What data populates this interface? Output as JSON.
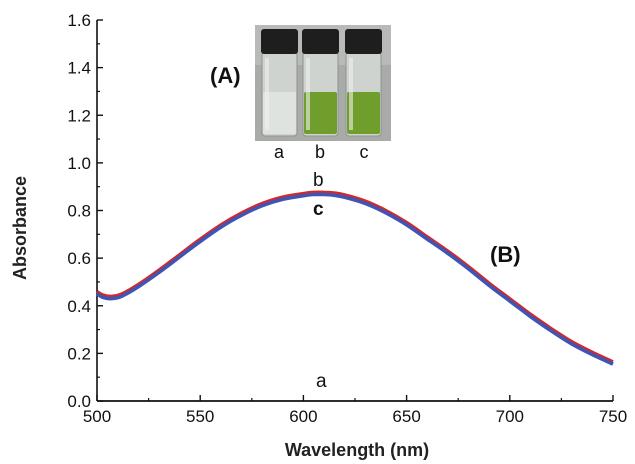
{
  "chart_data": {
    "type": "line",
    "xlabel": "Wavelength (nm)",
    "ylabel": "Absorbance",
    "xlim": [
      500,
      750
    ],
    "ylim": [
      0.0,
      1.6
    ],
    "xticks": [
      "500",
      "550",
      "600",
      "650",
      "700",
      "750"
    ],
    "yticks": [
      "0.0",
      "0.2",
      "0.4",
      "0.6",
      "0.8",
      "1.0",
      "1.2",
      "1.4",
      "1.6"
    ],
    "grid": false,
    "series": [
      {
        "name": "b",
        "color": "#d62728",
        "x": [
          500,
          503,
          507,
          512,
          520,
          530,
          540,
          550,
          560,
          570,
          580,
          590,
          600,
          605,
          610,
          615,
          620,
          630,
          640,
          650,
          660,
          670,
          680,
          690,
          700,
          710,
          720,
          730,
          740,
          750
        ],
        "y": [
          0.46,
          0.445,
          0.44,
          0.45,
          0.49,
          0.55,
          0.615,
          0.68,
          0.74,
          0.79,
          0.83,
          0.857,
          0.872,
          0.877,
          0.877,
          0.874,
          0.866,
          0.84,
          0.8,
          0.75,
          0.69,
          0.63,
          0.565,
          0.495,
          0.43,
          0.365,
          0.305,
          0.25,
          0.205,
          0.165
        ]
      },
      {
        "name": "c",
        "color": "#3f55b5",
        "x": [
          500,
          503,
          507,
          512,
          520,
          530,
          540,
          550,
          560,
          570,
          580,
          590,
          600,
          605,
          610,
          615,
          620,
          630,
          640,
          650,
          660,
          670,
          680,
          690,
          700,
          710,
          720,
          730,
          740,
          750
        ],
        "y": [
          0.45,
          0.435,
          0.43,
          0.44,
          0.48,
          0.54,
          0.605,
          0.67,
          0.73,
          0.78,
          0.82,
          0.847,
          0.862,
          0.867,
          0.867,
          0.864,
          0.856,
          0.83,
          0.79,
          0.74,
          0.68,
          0.62,
          0.555,
          0.485,
          0.42,
          0.355,
          0.295,
          0.24,
          0.195,
          0.155
        ]
      },
      {
        "name": "a",
        "color": "#111111",
        "x": [
          500,
          750
        ],
        "y": [
          0.0,
          0.0
        ]
      }
    ],
    "annotations": {
      "panel_b": "(B)",
      "curve_b": "b",
      "curve_c": "c",
      "curve_a": "a"
    },
    "inset": {
      "panel_label": "(A)",
      "vial_labels": [
        "a",
        "b",
        "c"
      ],
      "vial_colors": [
        "#dfe3e0",
        "#6f9e2c",
        "#6f9e2c"
      ],
      "cap_color": "#1e1e1e",
      "background_color": "#a8aaa8"
    }
  }
}
